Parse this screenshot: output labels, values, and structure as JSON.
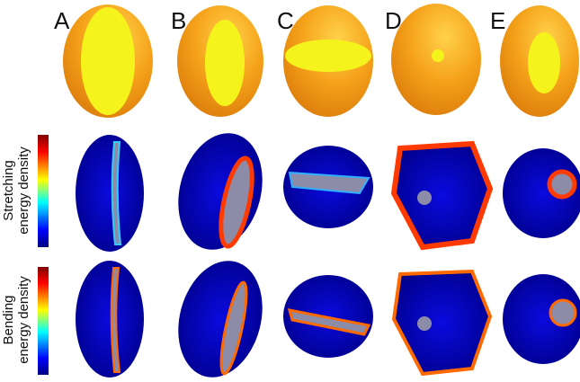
{
  "panel_labels": [
    "A",
    "B",
    "C",
    "D",
    "E"
  ],
  "row_labels": [
    {
      "line1": "Stretching",
      "line2": "energy density"
    },
    {
      "line1": "Bending",
      "line2": "energy density"
    }
  ]
}
